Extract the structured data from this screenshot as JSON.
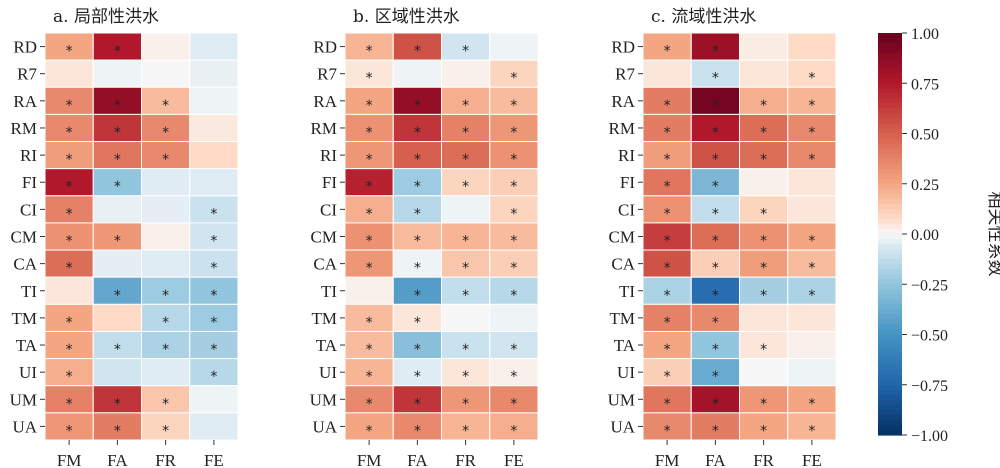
{
  "chart_data": {
    "type": "heatmap",
    "rows": [
      "RD",
      "R7",
      "RA",
      "RM",
      "RI",
      "FI",
      "CI",
      "CM",
      "CA",
      "TI",
      "TM",
      "TA",
      "UI",
      "UM",
      "UA"
    ],
    "columns": [
      "FM",
      "FA",
      "FR",
      "FE"
    ],
    "colorbar": {
      "label": "相关性系数",
      "range": [
        -1.0,
        1.0
      ],
      "ticks": [
        "1.00",
        "0.75",
        "0.50",
        "0.25",
        "0.00",
        "−0.25",
        "−0.50",
        "−0.75",
        "−1.00"
      ],
      "colormap": "RdBu_r"
    },
    "panels": [
      {
        "title": "a. 局部性洪水",
        "values": [
          [
            0.25,
            0.75,
            0.02,
            -0.05
          ],
          [
            0.05,
            -0.02,
            0.0,
            -0.03
          ],
          [
            0.35,
            0.85,
            0.18,
            -0.02
          ],
          [
            0.35,
            0.65,
            0.35,
            0.04
          ],
          [
            0.28,
            0.42,
            0.35,
            0.08
          ],
          [
            0.75,
            -0.25,
            -0.05,
            -0.05
          ],
          [
            0.38,
            -0.03,
            -0.04,
            -0.1
          ],
          [
            0.32,
            0.3,
            0.02,
            -0.08
          ],
          [
            0.45,
            -0.04,
            -0.05,
            -0.1
          ],
          [
            0.05,
            -0.4,
            -0.22,
            -0.25
          ],
          [
            0.25,
            0.08,
            -0.15,
            -0.22
          ],
          [
            0.25,
            -0.12,
            -0.18,
            -0.2
          ],
          [
            0.22,
            -0.08,
            -0.05,
            -0.15
          ],
          [
            0.38,
            0.65,
            0.15,
            -0.02
          ],
          [
            0.3,
            0.4,
            0.1,
            -0.05
          ]
        ],
        "significant": [
          [
            1,
            1,
            0,
            0
          ],
          [
            0,
            0,
            0,
            0
          ],
          [
            1,
            1,
            1,
            0
          ],
          [
            1,
            1,
            1,
            0
          ],
          [
            1,
            1,
            1,
            0
          ],
          [
            1,
            1,
            0,
            0
          ],
          [
            1,
            0,
            0,
            1
          ],
          [
            1,
            1,
            0,
            1
          ],
          [
            1,
            0,
            0,
            1
          ],
          [
            0,
            1,
            1,
            1
          ],
          [
            1,
            0,
            1,
            1
          ],
          [
            1,
            1,
            1,
            1
          ],
          [
            1,
            0,
            0,
            1
          ],
          [
            1,
            1,
            1,
            0
          ],
          [
            1,
            1,
            1,
            0
          ]
        ]
      },
      {
        "title": "b. 区域性洪水",
        "values": [
          [
            0.2,
            0.55,
            -0.08,
            -0.02
          ],
          [
            0.05,
            -0.02,
            0.02,
            0.1
          ],
          [
            0.25,
            0.85,
            0.22,
            0.18
          ],
          [
            0.32,
            0.65,
            0.38,
            0.3
          ],
          [
            0.3,
            0.5,
            0.45,
            0.32
          ],
          [
            0.72,
            -0.22,
            0.1,
            0.12
          ],
          [
            0.22,
            -0.15,
            -0.02,
            0.1
          ],
          [
            0.32,
            0.18,
            0.2,
            0.18
          ],
          [
            0.3,
            -0.02,
            0.15,
            0.12
          ],
          [
            0.02,
            -0.45,
            -0.12,
            -0.15
          ],
          [
            0.18,
            0.05,
            0.0,
            -0.02
          ],
          [
            0.18,
            -0.28,
            -0.1,
            -0.08
          ],
          [
            0.2,
            -0.05,
            0.05,
            0.02
          ],
          [
            0.35,
            0.65,
            0.3,
            0.35
          ],
          [
            0.25,
            0.35,
            0.2,
            0.22
          ]
        ],
        "significant": [
          [
            1,
            1,
            1,
            0
          ],
          [
            1,
            0,
            0,
            1
          ],
          [
            1,
            1,
            1,
            1
          ],
          [
            1,
            1,
            1,
            1
          ],
          [
            1,
            1,
            1,
            1
          ],
          [
            1,
            1,
            1,
            1
          ],
          [
            1,
            1,
            0,
            1
          ],
          [
            1,
            1,
            1,
            1
          ],
          [
            1,
            1,
            1,
            1
          ],
          [
            0,
            1,
            1,
            1
          ],
          [
            1,
            1,
            0,
            0
          ],
          [
            1,
            1,
            1,
            1
          ],
          [
            1,
            1,
            1,
            1
          ],
          [
            1,
            1,
            1,
            1
          ],
          [
            1,
            1,
            1,
            1
          ]
        ]
      },
      {
        "title": "c. 流域性洪水",
        "values": [
          [
            0.25,
            0.82,
            0.03,
            0.08
          ],
          [
            0.05,
            -0.1,
            0.05,
            0.08
          ],
          [
            0.4,
            0.95,
            0.22,
            0.2
          ],
          [
            0.4,
            0.75,
            0.45,
            0.35
          ],
          [
            0.28,
            0.55,
            0.45,
            0.35
          ],
          [
            0.42,
            -0.32,
            0.02,
            0.05
          ],
          [
            0.32,
            -0.12,
            0.1,
            0.05
          ],
          [
            0.62,
            0.45,
            0.32,
            0.25
          ],
          [
            0.55,
            0.12,
            0.28,
            0.18
          ],
          [
            -0.18,
            -0.7,
            -0.2,
            -0.18
          ],
          [
            0.38,
            0.35,
            0.05,
            0.05
          ],
          [
            0.25,
            -0.25,
            0.05,
            0.02
          ],
          [
            0.12,
            -0.38,
            0.0,
            -0.02
          ],
          [
            0.42,
            0.8,
            0.3,
            0.25
          ],
          [
            0.35,
            0.4,
            0.25,
            0.2
          ]
        ],
        "significant": [
          [
            1,
            1,
            0,
            0
          ],
          [
            0,
            1,
            0,
            1
          ],
          [
            1,
            1,
            1,
            1
          ],
          [
            1,
            1,
            1,
            1
          ],
          [
            1,
            1,
            1,
            1
          ],
          [
            1,
            1,
            0,
            0
          ],
          [
            1,
            1,
            1,
            0
          ],
          [
            1,
            1,
            1,
            1
          ],
          [
            1,
            1,
            1,
            1
          ],
          [
            1,
            1,
            1,
            1
          ],
          [
            1,
            1,
            0,
            0
          ],
          [
            1,
            1,
            1,
            0
          ],
          [
            1,
            1,
            0,
            0
          ],
          [
            1,
            1,
            1,
            1
          ],
          [
            1,
            1,
            1,
            1
          ]
        ]
      }
    ],
    "significance_marker": "*"
  }
}
